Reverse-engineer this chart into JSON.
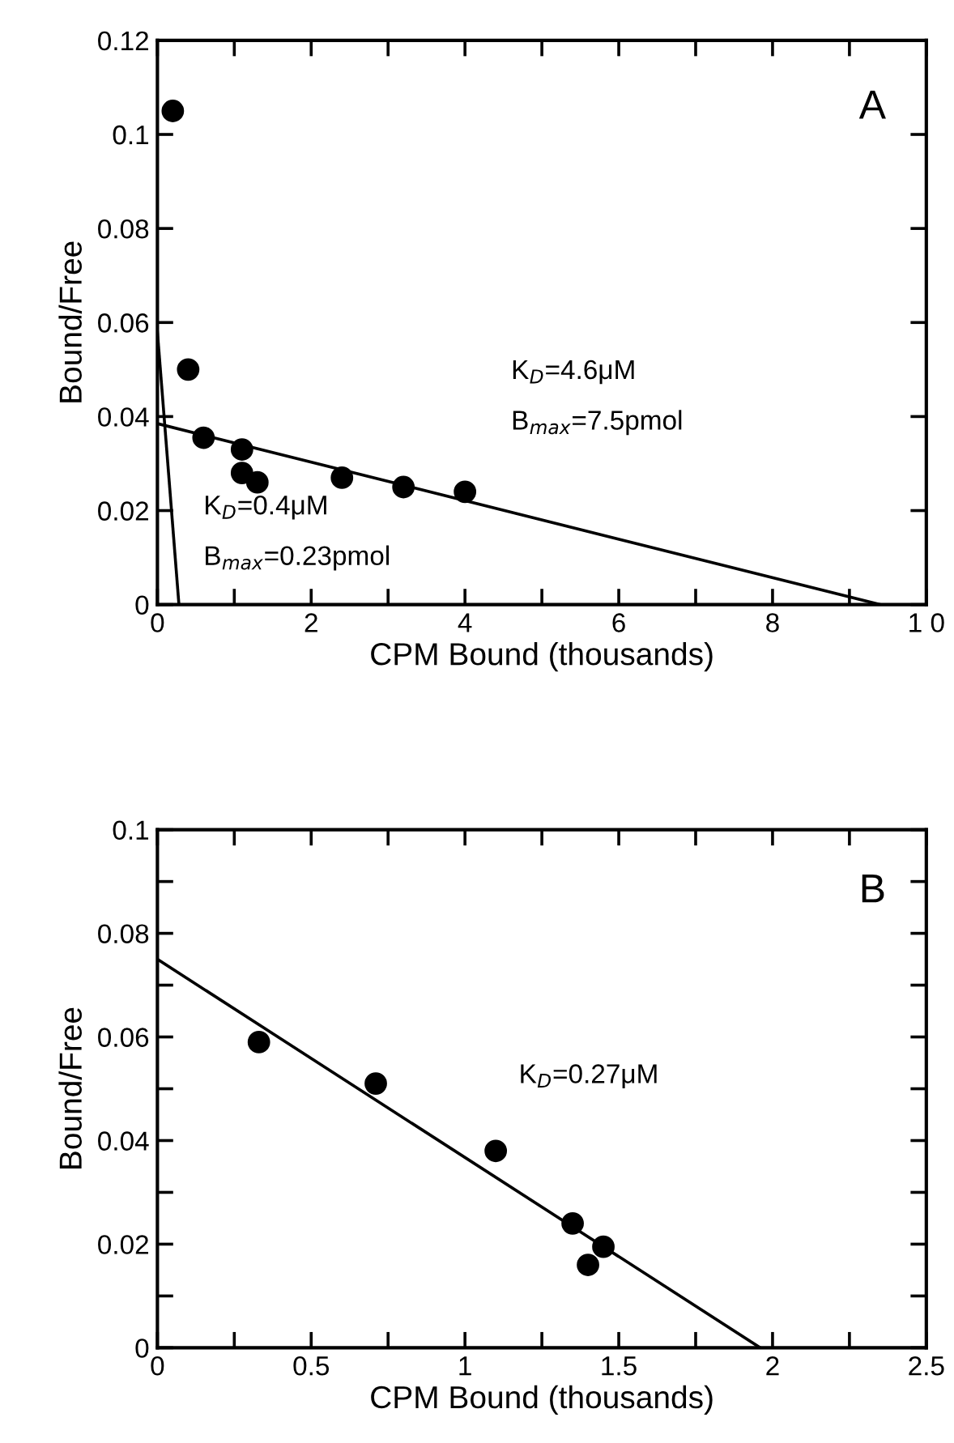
{
  "chart_data": [
    {
      "type": "scatter",
      "xlabel": "CPM Bound (thousands)",
      "ylabel": "Bound/Free",
      "xlim": [
        0,
        10
      ],
      "ylim": [
        0,
        0.12
      ],
      "grid": false,
      "xticks": [
        0,
        {
          "value": 1,
          "label": null
        },
        2,
        {
          "value": 3,
          "label": null
        },
        4,
        {
          "value": 5,
          "label": null
        },
        6,
        {
          "value": 7,
          "label": null
        },
        8,
        {
          "value": 9,
          "label": null
        },
        {
          "value": 10,
          "label": "1 0"
        }
      ],
      "yticks": [
        0,
        0.02,
        0.04,
        0.06,
        0.08,
        0.1,
        0.12
      ],
      "series": [
        {
          "marker": "circle",
          "color": "#000000",
          "x": [
            0.2,
            0.4,
            0.6,
            1.1,
            1.1,
            1.3,
            2.4,
            3.2,
            4.0
          ],
          "values": [
            0.105,
            0.05,
            0.0355,
            0.033,
            0.028,
            0.026,
            0.027,
            0.025,
            0.024
          ]
        },
        {
          "type": "line",
          "marker": "none",
          "color": "#000000",
          "x": [
            0,
            9.4
          ],
          "values": [
            0.0385,
            0
          ]
        },
        {
          "type": "line",
          "marker": "none",
          "color": "#000000",
          "x": [
            0,
            0.28
          ],
          "values": [
            0.058,
            0
          ]
        }
      ],
      "annotations": [
        "A",
        "K$_{D}$=4.6μM",
        "B$_{max}$=7.5pmol",
        "K$_{D}$=0.4μM",
        "B$_{max}$=0.23pmol"
      ]
    },
    {
      "type": "scatter",
      "xlabel": "CPM Bound (thousands)",
      "ylabel": "Bound/Free",
      "xlim": [
        0,
        2.5
      ],
      "ylim": [
        0,
        0.1
      ],
      "grid": false,
      "xticks": [
        0,
        {
          "value": 0.25,
          "label": null
        },
        0.5,
        {
          "value": 0.75,
          "label": null
        },
        1,
        {
          "value": 1.25,
          "label": null
        },
        1.5,
        {
          "value": 1.75,
          "label": null
        },
        2,
        {
          "value": 2.25,
          "label": null
        },
        2.5
      ],
      "yticks": [
        0,
        {
          "value": 0.01,
          "label": null
        },
        0.02,
        {
          "value": 0.03,
          "label": null
        },
        0.04,
        {
          "value": 0.05,
          "label": null
        },
        0.06,
        {
          "value": 0.07,
          "label": null
        },
        0.08,
        {
          "value": 0.09,
          "label": null
        },
        0.1
      ],
      "series": [
        {
          "marker": "circle",
          "color": "#000000",
          "x": [
            0.33,
            0.71,
            1.1,
            1.35,
            1.4,
            1.45
          ],
          "values": [
            0.059,
            0.051,
            0.038,
            0.024,
            0.016,
            0.0195
          ]
        },
        {
          "type": "line",
          "marker": "none",
          "color": "#000000",
          "x": [
            0,
            1.96
          ],
          "values": [
            0.075,
            0
          ]
        }
      ],
      "annotations": [
        "B",
        "K$_{D}$=0.27μM"
      ]
    }
  ]
}
